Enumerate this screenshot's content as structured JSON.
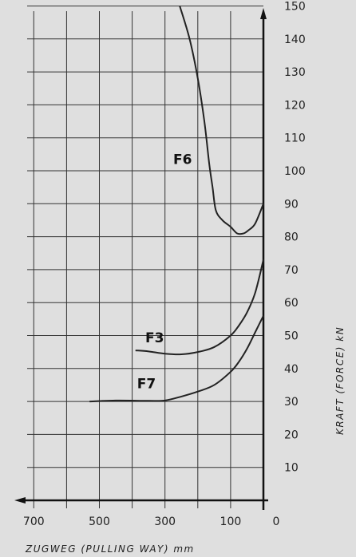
{
  "chart_data": {
    "type": "line",
    "title": "",
    "xlabel": "ZUGWEG (PULLING WAY) mm",
    "ylabel": "KRAFT (FORCE) kN",
    "xlim": [
      0,
      700
    ],
    "x_reversed": true,
    "ylim": [
      0,
      150
    ],
    "y_axis_position": "right",
    "grid": true,
    "x_ticks": [
      0,
      100,
      300,
      500,
      700
    ],
    "x_tick_labels": [
      "0",
      "100",
      "300",
      "500",
      "700"
    ],
    "x_grid_step": 100,
    "y_ticks": [
      10,
      20,
      30,
      40,
      50,
      60,
      70,
      80,
      90,
      100,
      110,
      120,
      130,
      140,
      150
    ],
    "y_tick_labels": [
      "10",
      "20",
      "30",
      "40",
      "50",
      "60",
      "70",
      "80",
      "90",
      "100",
      "110",
      "120",
      "130",
      "140",
      "150"
    ],
    "series": [
      {
        "name": "F6",
        "x": [
          255,
          225,
          200,
          180,
          165,
          155,
          145,
          125,
          100,
          80,
          60,
          45,
          25,
          0
        ],
        "y": [
          150,
          140,
          128,
          115,
          102,
          95,
          88,
          85,
          83,
          81,
          81,
          82,
          84,
          90
        ]
      },
      {
        "name": "F3",
        "x": [
          390,
          350,
          300,
          250,
          200,
          150,
          100,
          75,
          50,
          25,
          0
        ],
        "y": [
          45.5,
          45.2,
          44.5,
          44.3,
          45,
          46.5,
          50,
          53,
          57,
          63,
          73
        ]
      },
      {
        "name": "F7",
        "x": [
          530,
          450,
          350,
          300,
          250,
          200,
          150,
          100,
          75,
          50,
          25,
          0
        ],
        "y": [
          30,
          30.3,
          30.2,
          30.3,
          31.5,
          33,
          35,
          39,
          42,
          46,
          51,
          56
        ]
      }
    ],
    "colors": {
      "background": "#dfdfdf",
      "line": "#222222"
    }
  }
}
